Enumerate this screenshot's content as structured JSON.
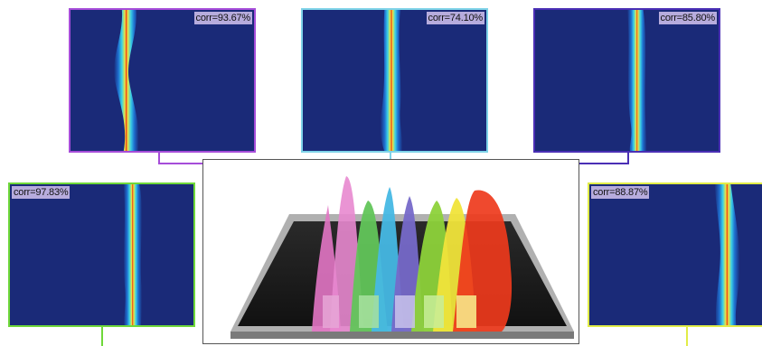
{
  "panels": [
    {
      "id": "p1",
      "label": "corr=93.67%",
      "border": "#a64dd9"
    },
    {
      "id": "p2",
      "label": "corr=74.10%",
      "border": "#7fd3e8"
    },
    {
      "id": "p3",
      "label": "corr=85.80%",
      "border": "#4a2fb5"
    },
    {
      "id": "p4",
      "label": "corr=97.83%",
      "border": "#6fd83a"
    },
    {
      "id": "p5",
      "label": "corr=88.87%",
      "border": "#e1ec47"
    }
  ],
  "colors": {
    "heatmap_bg": "#1a2a78",
    "pink": "#e276c4",
    "green": "#62c55a",
    "cyan": "#46b8e4",
    "purple": "#7669c9",
    "lime": "#8dd23a",
    "yellow": "#f0e43a",
    "red": "#ee3a1c"
  },
  "icons": [
    "heatmap-image",
    "3d-surface-plot"
  ]
}
